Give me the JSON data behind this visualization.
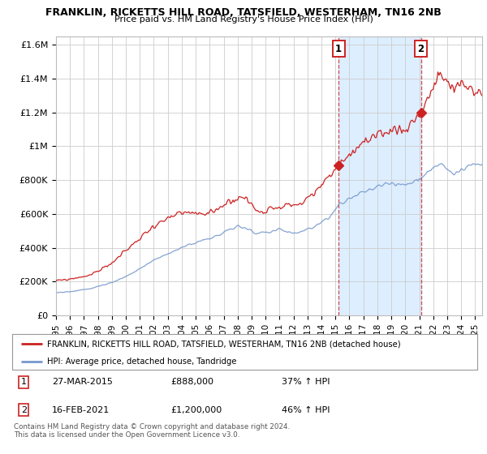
{
  "title1": "FRANKLIN, RICKETTS HILL ROAD, TATSFIELD, WESTERHAM, TN16 2NB",
  "title2": "Price paid vs. HM Land Registry's House Price Index (HPI)",
  "ylabel_ticks": [
    "£0",
    "£200K",
    "£400K",
    "£600K",
    "£800K",
    "£1M",
    "£1.2M",
    "£1.4M",
    "£1.6M"
  ],
  "ytick_values": [
    0,
    200000,
    400000,
    600000,
    800000,
    1000000,
    1200000,
    1400000,
    1600000
  ],
  "ylim": [
    0,
    1650000
  ],
  "xlim_start": 1995.0,
  "xlim_end": 2025.5,
  "xtick_years": [
    1995,
    1996,
    1997,
    1998,
    1999,
    2000,
    2001,
    2002,
    2003,
    2004,
    2005,
    2006,
    2007,
    2008,
    2009,
    2010,
    2011,
    2012,
    2013,
    2014,
    2015,
    2016,
    2017,
    2018,
    2019,
    2020,
    2021,
    2022,
    2023,
    2024,
    2025
  ],
  "marker1_x": 2015.23,
  "marker1_y": 888000,
  "marker1_label": "1",
  "marker2_x": 2021.12,
  "marker2_y": 1200000,
  "marker2_label": "2",
  "red_color": "#cc2222",
  "blue_color": "#7799cc",
  "shade_color": "#ddeeff",
  "annotation_box_color": "#cc2222",
  "background_color": "#ffffff",
  "grid_color": "#cccccc",
  "legend_line1": "FRANKLIN, RICKETTS HILL ROAD, TATSFIELD, WESTERHAM, TN16 2NB (detached house)",
  "legend_line2": "HPI: Average price, detached house, Tandridge",
  "table_row1_num": "1",
  "table_row1_date": "27-MAR-2015",
  "table_row1_price": "£888,000",
  "table_row1_hpi": "37% ↑ HPI",
  "table_row2_num": "2",
  "table_row2_date": "16-FEB-2021",
  "table_row2_price": "£1,200,000",
  "table_row2_hpi": "46% ↑ HPI",
  "footer": "Contains HM Land Registry data © Crown copyright and database right 2024.\nThis data is licensed under the Open Government Licence v3.0."
}
